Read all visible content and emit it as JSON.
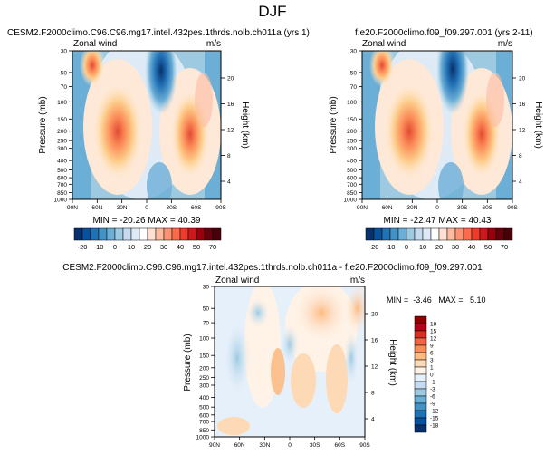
{
  "page": {
    "title": "DJF"
  },
  "panels": [
    {
      "title": "CESM2.F2000climo.C96.C96.mg17.intel.432pes.1thrds.nolb.ch011a (yrs 1)",
      "variable": "Zonal wind",
      "units": "m/s",
      "stats": "MIN = -20.26   MAX = 40.39"
    },
    {
      "title": "f.e20.F2000climo.f09_f09.297.001 (yrs 2-11)",
      "variable": "Zonal wind",
      "units": "m/s",
      "stats": "MIN = -22.47   MAX = 40.43"
    },
    {
      "title": "CESM2.F2000climo.C96.C96.mg17.intel.432pes.1thrds.nolb.ch011a - f.e20.F2000climo.f09_f09.297.001",
      "variable": "Zonal wind",
      "units": "m/s",
      "stats": "MIN =  -3.46   MAX =   5.10"
    }
  ],
  "axes": {
    "ylabel": "Pressure (mb)",
    "ylabel_right": "Height (km)",
    "x_ticks": [
      "90N",
      "60N",
      "30N",
      "0",
      "30S",
      "60S",
      "90S"
    ],
    "y_ticks": [
      "30",
      "50",
      "70",
      "100",
      "150",
      "200",
      "250",
      "300",
      "400",
      "500",
      "600",
      "700",
      "850",
      "1000"
    ],
    "height_ticks": [
      "20",
      "16",
      "12",
      "8",
      "4"
    ]
  },
  "colorbar_main": {
    "labels": [
      "-20",
      "-10",
      "0",
      "10",
      "20",
      "30",
      "40",
      "50",
      "70"
    ],
    "colors": [
      "#08306b",
      "#08519c",
      "#2171b5",
      "#4292c6",
      "#6baed6",
      "#9ecae1",
      "#c6dbef",
      "#deebf7",
      "#ffffff",
      "#fee0d2",
      "#fcbba1",
      "#fc9272",
      "#fb6a4a",
      "#ef3b2c",
      "#cb181d",
      "#99000d",
      "#67000d",
      "#4a0008"
    ]
  },
  "colorbar_diff": {
    "labels": [
      "18",
      "15",
      "12",
      "9",
      "6",
      "3",
      "1",
      "0",
      "-1",
      "-3",
      "-6",
      "-9",
      "-12",
      "-15",
      "-18"
    ],
    "colors": [
      "#8b0000",
      "#b3001b",
      "#d7301f",
      "#ef6548",
      "#fc8d59",
      "#fdbb84",
      "#fdd9b5",
      "#fff2e6",
      "#e6f0fb",
      "#c6dbef",
      "#9ecae1",
      "#6baed6",
      "#4292c6",
      "#2171b5",
      "#08519c",
      "#08306b"
    ]
  },
  "chart_data": [
    {
      "type": "heatmap",
      "title": "CESM2.F2000climo.C96.C96.mg17.intel.432pes.1thrds.nolb.ch011a (yrs 1)",
      "variable": "Zonal wind (m/s)",
      "min": -20.26,
      "max": 40.39,
      "x": [
        "90N",
        "60N",
        "30N",
        "0",
        "30S",
        "60S",
        "90S"
      ],
      "y_pressure_mb": [
        30,
        50,
        70,
        100,
        150,
        200,
        250,
        300,
        400,
        500,
        600,
        700,
        850,
        1000
      ],
      "jets": [
        {
          "lat": 30,
          "pressure_mb": 200,
          "value": 40
        },
        {
          "lat": -45,
          "pressure_mb": 200,
          "value": 35
        },
        {
          "lat": 65,
          "pressure_mb": 30,
          "value": 35
        }
      ],
      "easterlies": [
        {
          "lat": 0,
          "pressure_mb": 30,
          "value": -20
        }
      ]
    },
    {
      "type": "heatmap",
      "title": "f.e20.F2000climo.f09_f09.297.001 (yrs 2-11)",
      "variable": "Zonal wind (m/s)",
      "min": -22.47,
      "max": 40.43,
      "x": [
        "90N",
        "60N",
        "30N",
        "0",
        "30S",
        "60S",
        "90S"
      ],
      "y_pressure_mb": [
        30,
        50,
        70,
        100,
        150,
        200,
        250,
        300,
        400,
        500,
        600,
        700,
        850,
        1000
      ],
      "jets": [
        {
          "lat": 30,
          "pressure_mb": 200,
          "value": 40
        },
        {
          "lat": -45,
          "pressure_mb": 200,
          "value": 35
        },
        {
          "lat": 65,
          "pressure_mb": 30,
          "value": 35
        }
      ],
      "easterlies": [
        {
          "lat": 0,
          "pressure_mb": 30,
          "value": -22
        }
      ]
    },
    {
      "type": "heatmap",
      "title": "CESM2.F2000climo.C96.C96.mg17.intel.432pes.1thrds.nolb.ch011a - f.e20.F2000climo.f09_f09.297.001",
      "variable": "Zonal wind difference (m/s)",
      "min": -3.46,
      "max": 5.1,
      "x": [
        "90N",
        "60N",
        "30N",
        "0",
        "30S",
        "60S",
        "90S"
      ],
      "y_pressure_mb": [
        30,
        50,
        70,
        100,
        150,
        200,
        250,
        300,
        400,
        500,
        600,
        700,
        850,
        1000
      ]
    }
  ]
}
